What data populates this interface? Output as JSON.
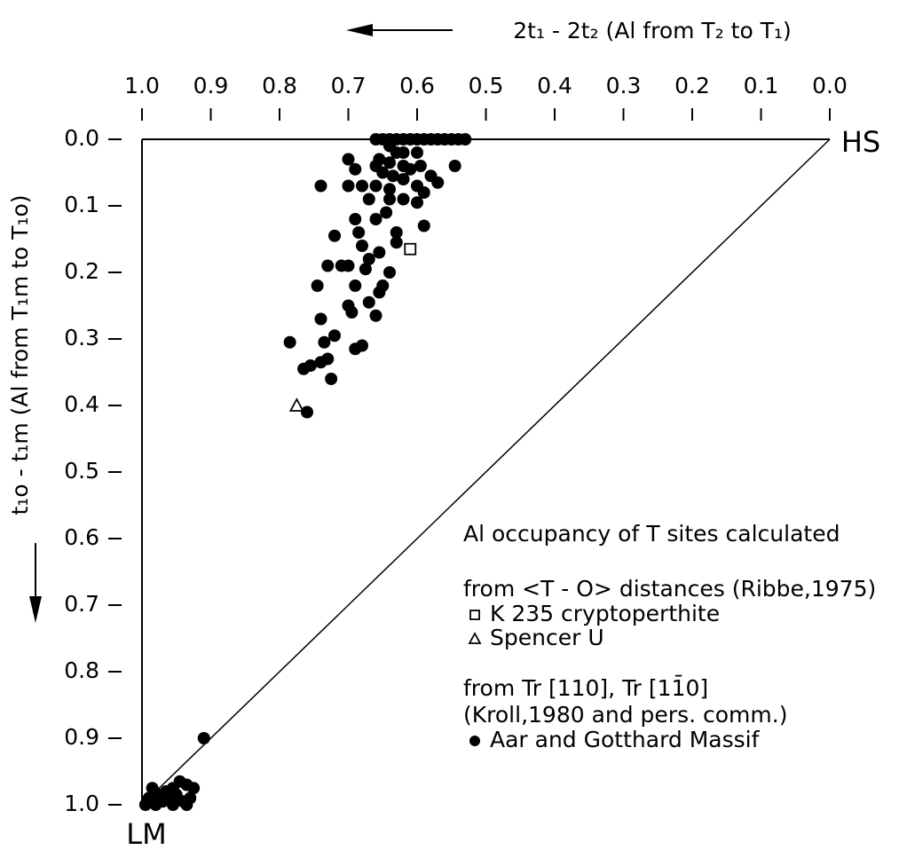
{
  "chart_data": {
    "type": "scatter",
    "x_label": "2t₁ - 2t₂ (Al from T₂ to T₁)",
    "y_label": "t₁o - t₁m (Al from T₁m to T₁o)",
    "xlim": [
      1,
      0
    ],
    "ylim": [
      0,
      1
    ],
    "xticks": [
      {
        "value": 1,
        "label": "1.0"
      },
      0.9,
      0.8,
      0.7,
      0.6,
      0.5,
      0.4,
      0.3,
      0.2,
      0.1,
      {
        "value": 0,
        "label": "0.0"
      }
    ],
    "yticks": [
      {
        "value": 0,
        "label": "0.0"
      },
      0.1,
      0.2,
      0.3,
      0.4,
      0.5,
      0.6,
      0.7,
      0.8,
      0.9,
      {
        "value": 1,
        "label": "1.0"
      }
    ],
    "corner_labels": [
      "HS",
      "LM"
    ],
    "legend_title": "Al occupancy of T sites calculated",
    "legend_headings": [
      [
        "from <T - O> distances (Ribbe,1975)"
      ],
      [
        "from Tr [110], Tr [11̄0]",
        "(Kroll,1980 and pers. comm.)"
      ]
    ],
    "series": [
      {
        "name": "K 235 cryptoperthite",
        "marker": "square",
        "color": "#000000",
        "x": [
          0.61
        ],
        "values": [
          0.165
        ]
      },
      {
        "name": "Spencer U",
        "marker": "triangle",
        "color": "#000000",
        "x": [
          0.775
        ],
        "values": [
          0.4
        ]
      },
      {
        "name": "Aar and Gotthard Massif",
        "marker": "circle",
        "color": "#000000",
        "x": [
          0.66,
          0.65,
          0.64,
          0.63,
          0.62,
          0.61,
          0.6,
          0.59,
          0.58,
          0.57,
          0.56,
          0.55,
          0.54,
          0.53,
          0.64,
          0.63,
          0.62,
          0.6,
          0.655,
          0.64,
          0.62,
          0.61,
          0.595,
          0.545,
          0.7,
          0.69,
          0.66,
          0.65,
          0.635,
          0.62,
          0.6,
          0.58,
          0.57,
          0.64,
          0.66,
          0.68,
          0.7,
          0.74,
          0.62,
          0.64,
          0.67,
          0.6,
          0.59,
          0.645,
          0.66,
          0.69,
          0.63,
          0.59,
          0.72,
          0.685,
          0.68,
          0.63,
          0.67,
          0.655,
          0.7,
          0.71,
          0.73,
          0.675,
          0.64,
          0.65,
          0.655,
          0.69,
          0.745,
          0.67,
          0.7,
          0.695,
          0.66,
          0.74,
          0.72,
          0.735,
          0.785,
          0.68,
          0.69,
          0.73,
          0.74,
          0.755,
          0.765,
          0.725,
          0.76,
          0.91,
          0.995,
          0.99,
          0.985,
          0.975,
          0.97,
          0.965,
          0.96,
          0.955,
          0.95,
          0.945,
          0.94,
          0.935,
          0.93,
          0.925,
          0.98,
          0.955,
          0.935
        ],
        "values": [
          0,
          0,
          0,
          0,
          0,
          0,
          0,
          0,
          0,
          0,
          0,
          0,
          0,
          0,
          0.01,
          0.02,
          0.02,
          0.02,
          0.03,
          0.035,
          0.04,
          0.045,
          0.04,
          0.04,
          0.03,
          0.045,
          0.04,
          0.05,
          0.055,
          0.06,
          0.07,
          0.055,
          0.065,
          0.075,
          0.07,
          0.07,
          0.07,
          0.07,
          0.09,
          0.09,
          0.09,
          0.095,
          0.08,
          0.11,
          0.12,
          0.12,
          0.14,
          0.13,
          0.145,
          0.14,
          0.16,
          0.155,
          0.18,
          0.17,
          0.19,
          0.19,
          0.19,
          0.195,
          0.2,
          0.22,
          0.23,
          0.22,
          0.22,
          0.245,
          0.25,
          0.26,
          0.265,
          0.27,
          0.295,
          0.305,
          0.305,
          0.31,
          0.315,
          0.33,
          0.335,
          0.34,
          0.345,
          0.36,
          0.41,
          0.9,
          1,
          0.99,
          0.975,
          0.985,
          0.995,
          0.98,
          0.99,
          0.975,
          0.985,
          0.965,
          0.995,
          0.97,
          0.99,
          0.975,
          1,
          1,
          1
        ]
      }
    ]
  }
}
